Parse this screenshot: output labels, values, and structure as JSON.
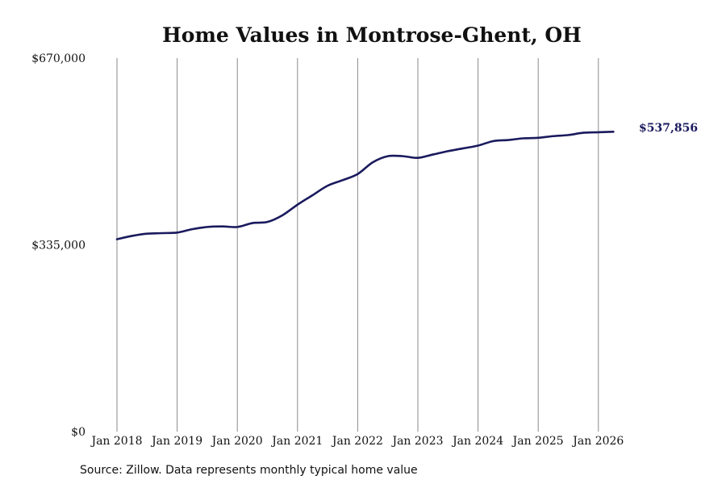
{
  "chart_data": {
    "type": "line",
    "title": "Home Values in Montrose-Ghent, OH",
    "xlabel": "",
    "ylabel": "",
    "ylim": [
      0,
      670000
    ],
    "y_ticks": [
      {
        "value": 0,
        "label": "$0"
      },
      {
        "value": 335000,
        "label": "$335,000"
      },
      {
        "value": 670000,
        "label": "$670,000"
      }
    ],
    "x_ticks": [
      {
        "value": 2018,
        "label": "Jan 2018"
      },
      {
        "value": 2019,
        "label": "Jan 2019"
      },
      {
        "value": 2020,
        "label": "Jan 2020"
      },
      {
        "value": 2021,
        "label": "Jan 2021"
      },
      {
        "value": 2022,
        "label": "Jan 2022"
      },
      {
        "value": 2023,
        "label": "Jan 2023"
      },
      {
        "value": 2024,
        "label": "Jan 2024"
      },
      {
        "value": 2025,
        "label": "Jan 2025"
      },
      {
        "value": 2026,
        "label": "Jan 2026"
      }
    ],
    "xlim": [
      2018,
      2026.5
    ],
    "grid": "vertical",
    "series": [
      {
        "color": "#1a1a5e",
        "points": [
          [
            2018.0,
            345000
          ],
          [
            2018.25,
            351000
          ],
          [
            2018.5,
            355000
          ],
          [
            2018.75,
            356000
          ],
          [
            2019.0,
            357000
          ],
          [
            2019.25,
            363000
          ],
          [
            2019.5,
            367000
          ],
          [
            2019.75,
            368000
          ],
          [
            2020.0,
            367000
          ],
          [
            2020.25,
            374000
          ],
          [
            2020.5,
            376000
          ],
          [
            2020.75,
            388000
          ],
          [
            2021.0,
            407000
          ],
          [
            2021.25,
            424000
          ],
          [
            2021.5,
            441000
          ],
          [
            2021.75,
            451000
          ],
          [
            2022.0,
            462000
          ],
          [
            2022.25,
            483000
          ],
          [
            2022.5,
            494000
          ],
          [
            2022.75,
            494000
          ],
          [
            2023.0,
            491000
          ],
          [
            2023.25,
            497000
          ],
          [
            2023.5,
            503000
          ],
          [
            2023.75,
            508000
          ],
          [
            2024.0,
            513000
          ],
          [
            2024.25,
            521000
          ],
          [
            2024.5,
            523000
          ],
          [
            2024.75,
            526000
          ],
          [
            2025.0,
            527000
          ],
          [
            2025.25,
            530000
          ],
          [
            2025.5,
            532000
          ],
          [
            2025.75,
            536000
          ],
          [
            2026.0,
            537000
          ],
          [
            2026.25,
            537856
          ]
        ]
      }
    ],
    "end_label": "$537,856",
    "source_note": "Source: Zillow. Data represents monthly typical home value"
  }
}
